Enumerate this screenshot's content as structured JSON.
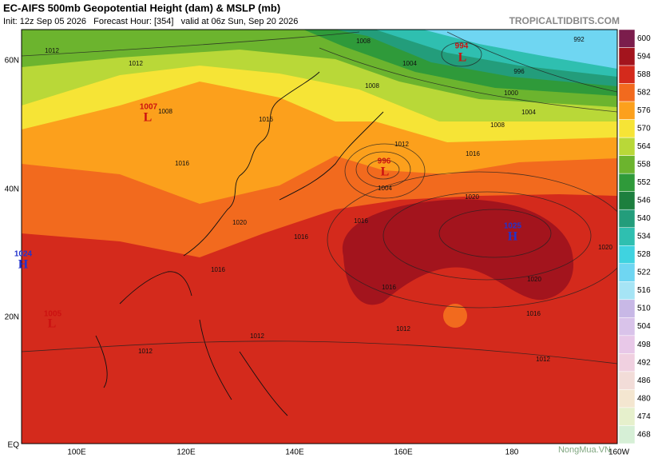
{
  "header": {
    "title": "EC-AIFS 500mb Geopotential Height (dam) & MSLP (mb)",
    "subtitle": "Init: 12z Sep 05 2026   Forecast Hour: [354]   valid at 06z Sun, Sep 20 2026",
    "site": "TROPICALTIDBITS.COM",
    "watermark": "NongMua.VN"
  },
  "axes": {
    "lat_labels": [
      "60N",
      "40N",
      "20N",
      "EQ"
    ],
    "lon_labels": [
      "100E",
      "120E",
      "140E",
      "160E",
      "180",
      "160W"
    ]
  },
  "colorbar": {
    "levels": [
      600,
      594,
      588,
      582,
      576,
      570,
      564,
      558,
      552,
      546,
      540,
      534,
      528,
      522,
      516,
      510,
      504,
      498,
      492,
      486,
      480,
      474,
      468
    ],
    "colors": [
      "#7b1d4c",
      "#a3141d",
      "#d42a1c",
      "#f26a1e",
      "#fca01c",
      "#f6e436",
      "#b9d838",
      "#6cb42e",
      "#2f9a3a",
      "#1d7f3e",
      "#239d7b",
      "#2fbfb0",
      "#3fd3e0",
      "#6fd6f2",
      "#a6e4f5",
      "#c8b8e6",
      "#d9c3ea",
      "#e8c8e8",
      "#f0d0e0",
      "#f2dcd8",
      "#f4e6d0",
      "#e6f0cc",
      "#d6efd6"
    ]
  },
  "pressure_centers": [
    {
      "letter": "L",
      "value": "1007"
    },
    {
      "letter": "L",
      "value": "996"
    },
    {
      "letter": "L",
      "value": "994"
    },
    {
      "letter": "H",
      "value": "1025"
    },
    {
      "letter": "H",
      "value": "1024"
    },
    {
      "letter": "L",
      "value": "1005"
    }
  ],
  "isobar_labels": [
    "1012",
    "1012",
    "1008",
    "1008",
    "1004",
    "1008",
    "1000",
    "996",
    "992",
    "1004",
    "1008",
    "1012",
    "1016",
    "1020",
    "1016",
    "1016",
    "1020",
    "1016",
    "1012",
    "1012",
    "1012",
    "1012",
    "1016",
    "1016",
    "1020",
    "1020",
    "1016",
    "1016",
    "1004"
  ]
}
